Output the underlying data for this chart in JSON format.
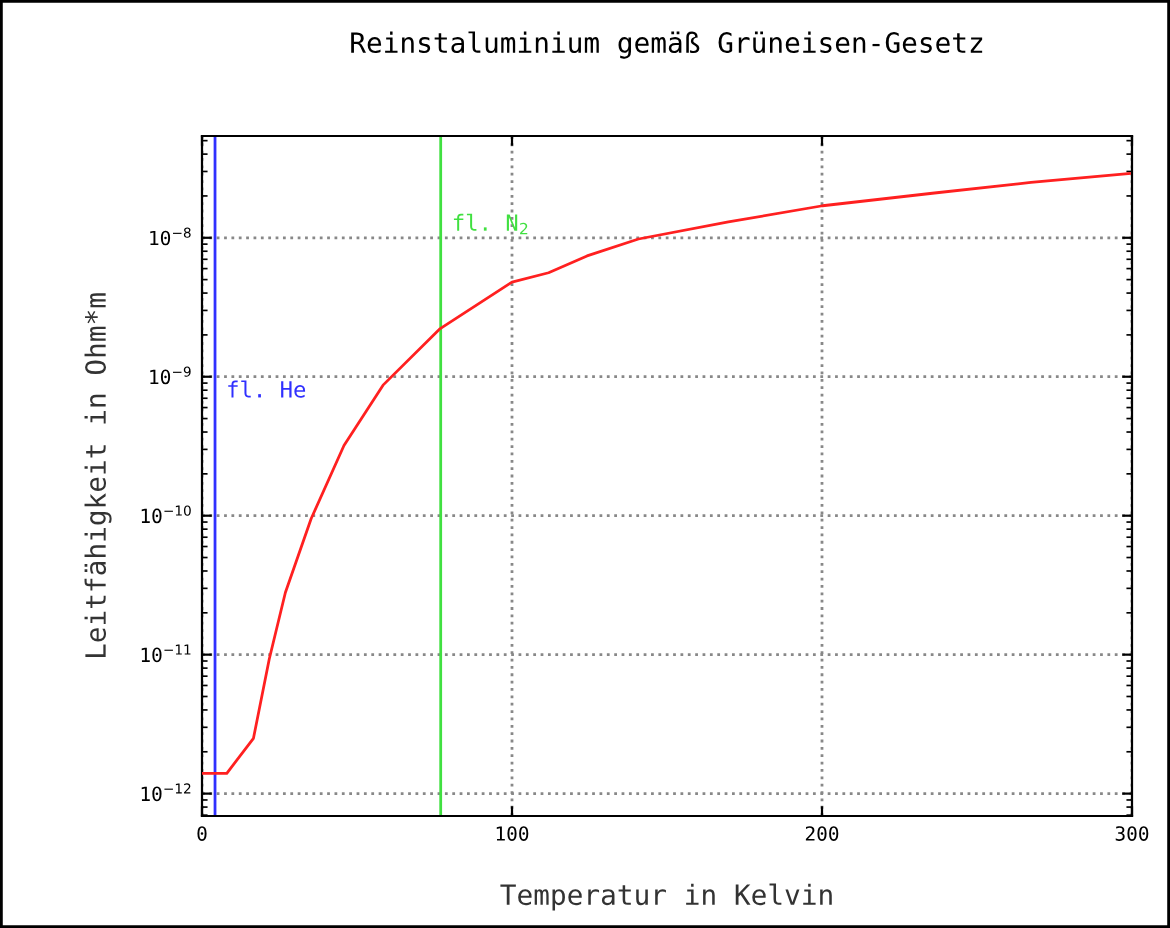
{
  "chart_data": {
    "type": "line",
    "title": "Reinstaluminium gemäß Grüneisen-Gesetz",
    "xlabel": "Temperatur in Kelvin",
    "ylabel": "Leitfähigkeit in Ohm*m",
    "log": "y",
    "grid": true,
    "legend": false,
    "marker": "none",
    "line_style": "solid",
    "xlim": [
      0,
      300
    ],
    "xticks": [
      0,
      100,
      200,
      300
    ],
    "ylim": [
      6.9e-13,
      5.4e-08
    ],
    "yticks": [
      {
        "value": 1e-12,
        "label": "10$^{−12}$"
      },
      {
        "value": 1e-11,
        "label": "10$^{−11}$"
      },
      {
        "value": 1e-10,
        "label": "10$^{−10}$"
      },
      {
        "value": 1e-09,
        "label": "10$^{−9}$"
      },
      {
        "value": 1e-08,
        "label": "10$^{−8}$"
      }
    ],
    "series": [
      {
        "color": "#ff2020",
        "x": [
          0,
          4,
          8,
          16.6,
          21.7,
          26.9,
          35.2,
          45.8,
          58.4,
          76.6,
          100,
          111.8,
          124.2,
          140.8,
          169.8,
          200.2,
          236.3,
          267.4,
          299.2
        ],
        "values": [
          1.4e-12,
          1.4e-12,
          1.4e-12,
          2.5e-12,
          9.3e-12,
          2.8e-11,
          9.5e-11,
          3.2e-10,
          8.7e-10,
          2.2e-09,
          4.8e-09,
          5.6e-09,
          7.4e-09,
          9.8e-09,
          1.3e-08,
          1.7e-08,
          2.1e-08,
          2.5e-08,
          2.9e-08
        ]
      }
    ],
    "ref_lines": [
      {
        "axis": "x",
        "value": 4.2,
        "label": "fl. He",
        "color": "#3030ff",
        "line_style": "solid"
      },
      {
        "axis": "x",
        "value": 77,
        "label": "fl. N$_{2}$",
        "color": "#40e040",
        "line_style": "solid"
      }
    ]
  }
}
